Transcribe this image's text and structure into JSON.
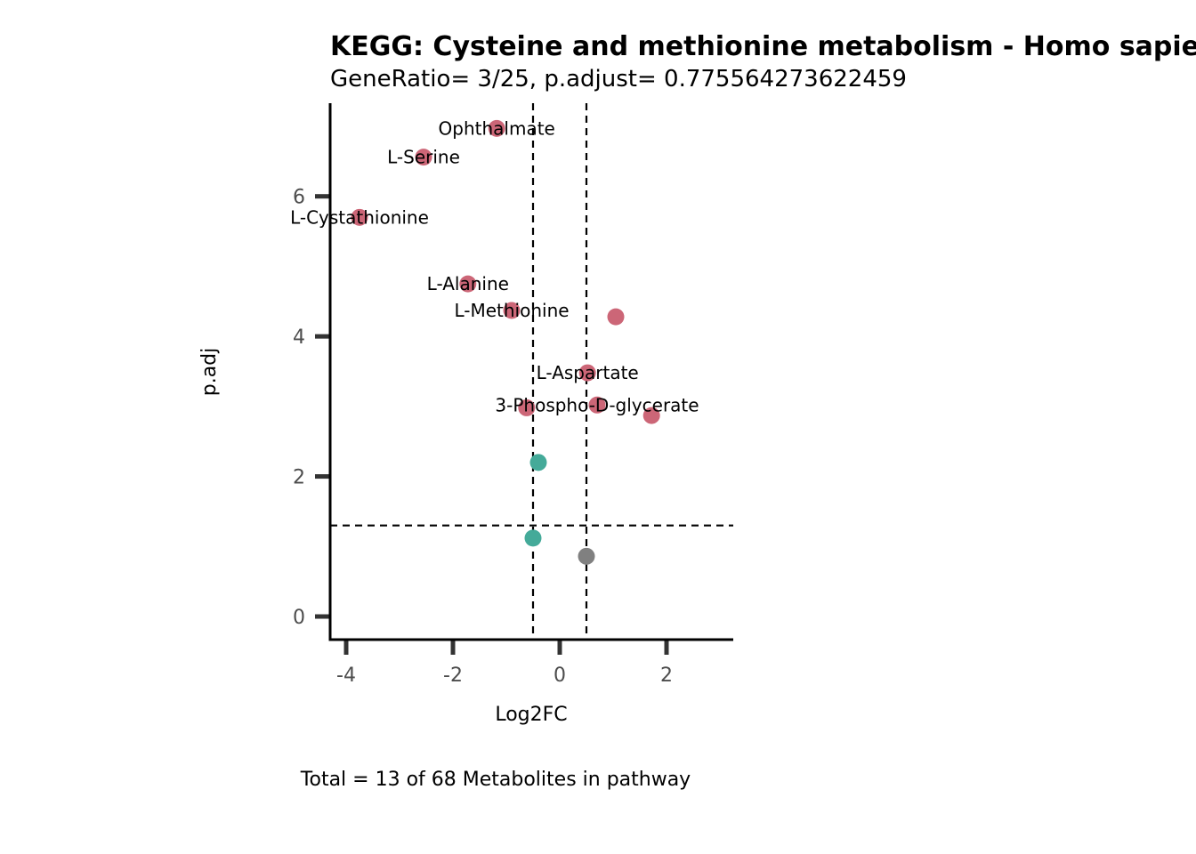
{
  "chart_data": {
    "type": "scatter",
    "title": "KEGG: Cysteine and methionine metabolism - Homo sapiens (human)",
    "subtitle": "GeneRatio= 3/25, p.adjust= 0.775564273622459",
    "xlabel": "Log2FC",
    "ylabel": "p.adj",
    "caption": "Total = 13 of 68 Metabolites in pathway",
    "xlim": [
      -4.3,
      3.25
    ],
    "ylim": [
      -0.33,
      7.33
    ],
    "x_ticks": [
      -4,
      -2,
      0,
      2
    ],
    "x_tick_labels": [
      "-4",
      "-2",
      "0",
      "2"
    ],
    "y_ticks": [
      0,
      2,
      4,
      6
    ],
    "y_tick_labels": [
      "0",
      "2",
      "4",
      "6"
    ],
    "grid": false,
    "thresholds": {
      "vertical": [
        -0.5,
        0.5
      ],
      "horizontal": 1.3
    },
    "colors": {
      "up": "#cc6677",
      "down": "#44aa99",
      "ns": "#808080",
      "threshold": "#000000"
    },
    "points": [
      {
        "x": -1.18,
        "y": 6.97,
        "group": "up",
        "label": "Ophthalmate"
      },
      {
        "x": -2.55,
        "y": 6.56,
        "group": "up",
        "label": "L-Serine"
      },
      {
        "x": -3.75,
        "y": 5.7,
        "group": "up",
        "label": "L-Cystathionine"
      },
      {
        "x": -1.72,
        "y": 4.75,
        "group": "up",
        "label": "L-Alanine"
      },
      {
        "x": -0.9,
        "y": 4.37,
        "group": "up",
        "label": "L-Methionine"
      },
      {
        "x": 1.05,
        "y": 4.28,
        "group": "up",
        "label": ""
      },
      {
        "x": 0.52,
        "y": 3.48,
        "group": "up",
        "label": "L-Aspartate"
      },
      {
        "x": -0.62,
        "y": 2.98,
        "group": "up",
        "label": ""
      },
      {
        "x": 0.7,
        "y": 3.02,
        "group": "up",
        "label": "3-Phospho-D-glycerate"
      },
      {
        "x": 1.72,
        "y": 2.87,
        "group": "up",
        "label": ""
      },
      {
        "x": -0.4,
        "y": 2.2,
        "group": "down",
        "label": ""
      },
      {
        "x": -0.5,
        "y": 1.12,
        "group": "down",
        "label": ""
      },
      {
        "x": 0.5,
        "y": 0.86,
        "group": "ns",
        "label": ""
      }
    ]
  }
}
